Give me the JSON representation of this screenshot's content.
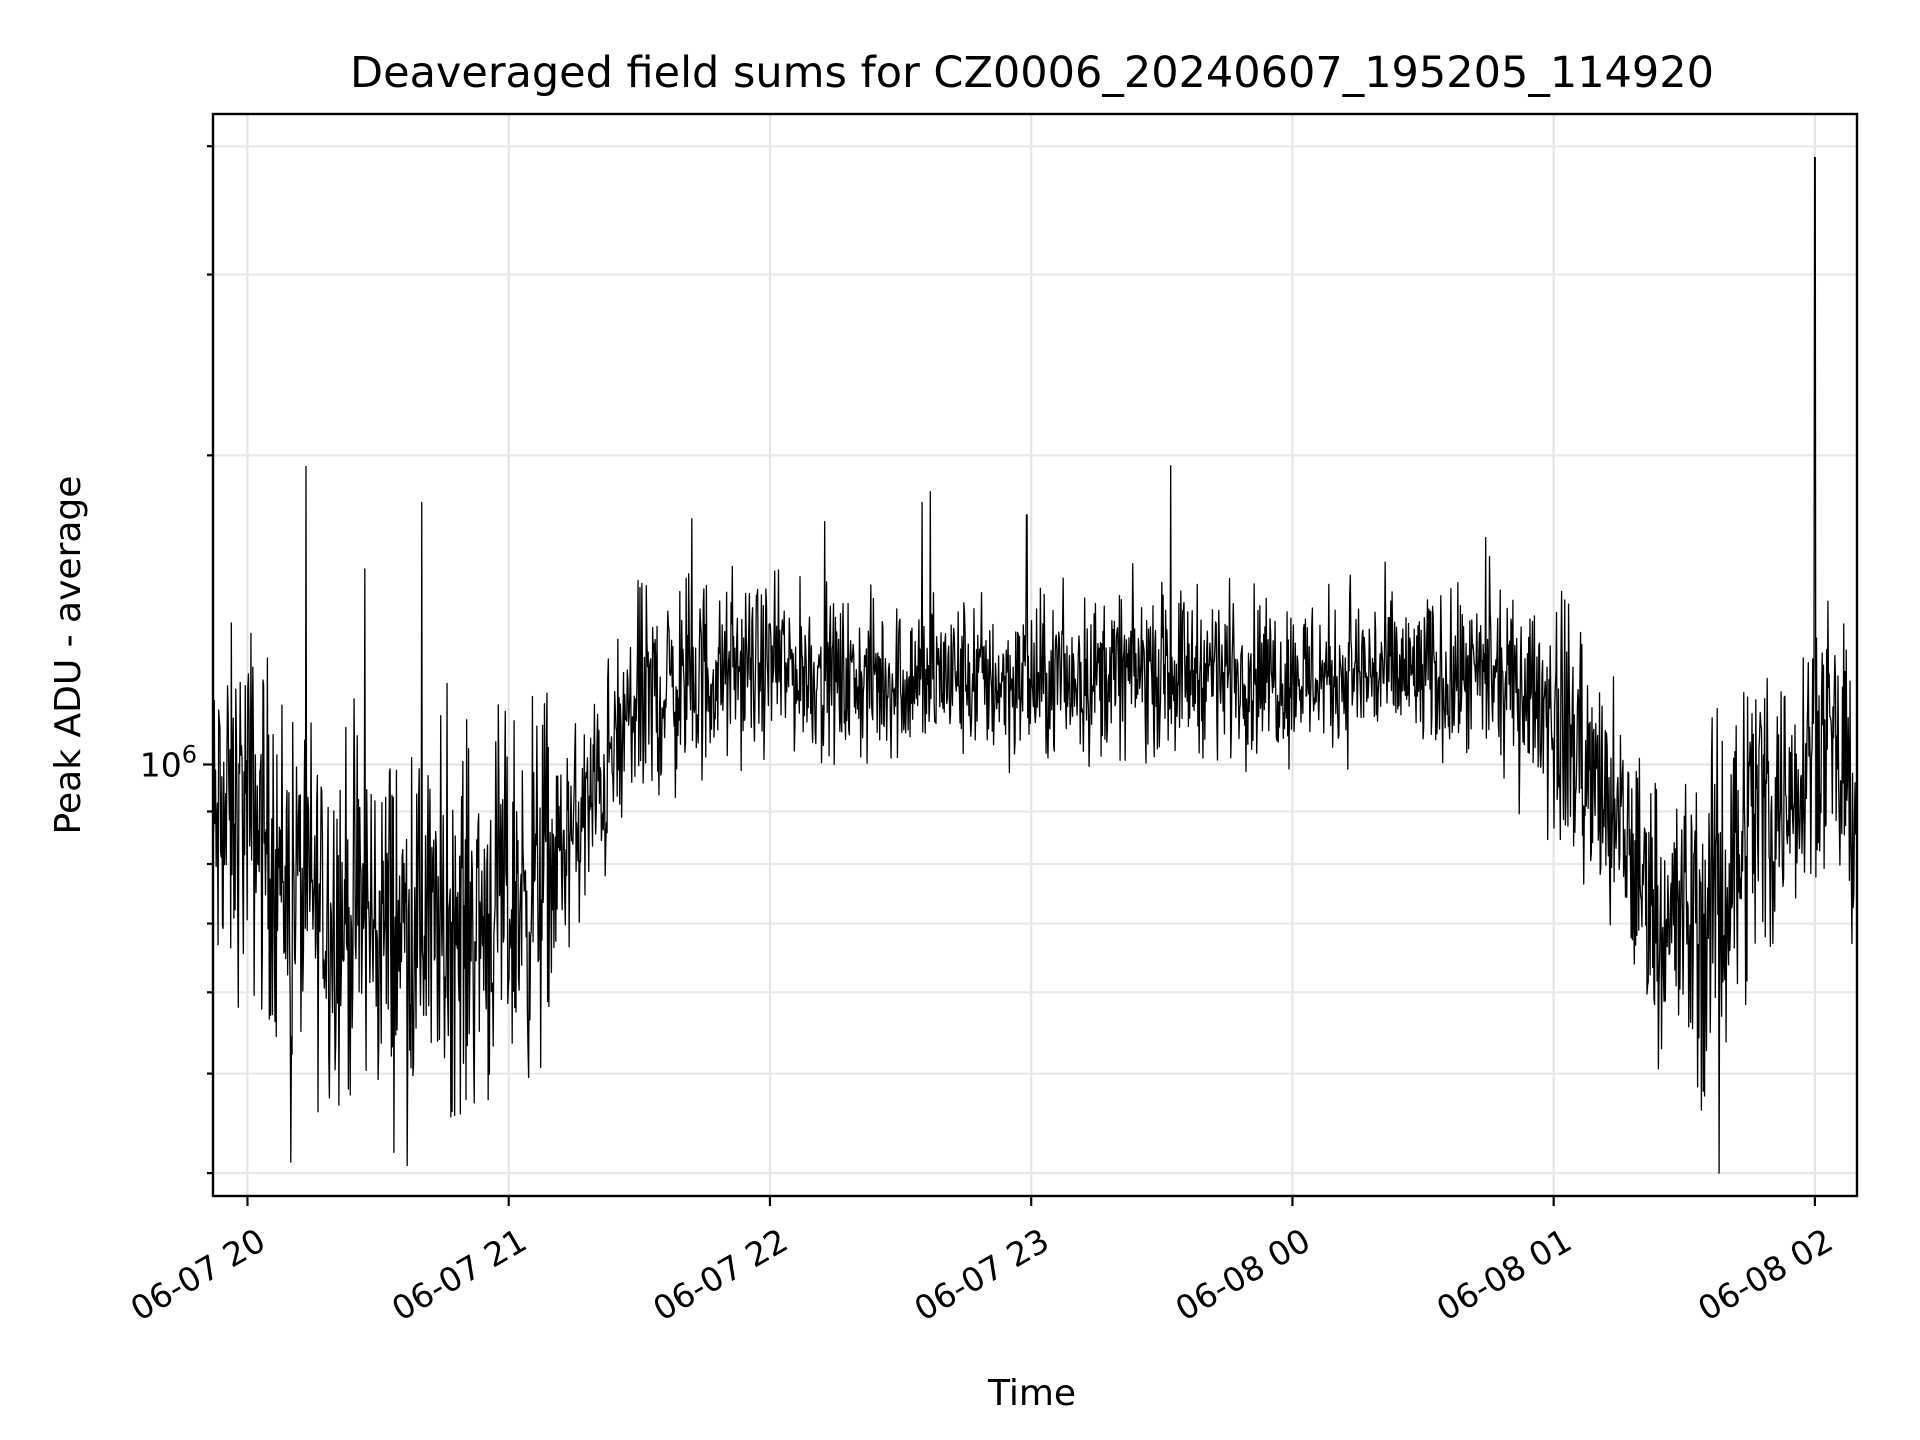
{
  "chart_data": {
    "type": "line",
    "title": "Deaveraged field sums for CZ0006_20240607_195205_114920",
    "xlabel": "Time",
    "ylabel": "Peak ADU - average",
    "y_scale": "log",
    "ylim": [
      380000,
      4300000
    ],
    "xlim": [
      "2024-06-07T19:52:05",
      "2024-06-08T02:09:40"
    ],
    "x_ticks": [
      {
        "value": "2024-06-07T20:00:00",
        "label": "06-07 20"
      },
      {
        "value": "2024-06-07T21:00:00",
        "label": "06-07 21"
      },
      {
        "value": "2024-06-07T22:00:00",
        "label": "06-07 22"
      },
      {
        "value": "2024-06-07T23:00:00",
        "label": "06-07 23"
      },
      {
        "value": "2024-06-08T00:00:00",
        "label": "06-08 00"
      },
      {
        "value": "2024-06-08T01:00:00",
        "label": "06-08 01"
      },
      {
        "value": "2024-06-08T02:00:00",
        "label": "06-08 02"
      }
    ],
    "y_ticks_major": [
      {
        "value": 1000000,
        "base": "10",
        "exp": "6"
      }
    ],
    "y_ticks_minor": [
      400000,
      500000,
      600000,
      700000,
      800000,
      900000,
      2000000,
      3000000,
      4000000
    ],
    "grid": true,
    "line_color": "#000000",
    "series": [
      {
        "x": [
          "2024-06-07T19:52:05",
          "2024-06-07T20:00:00",
          "2024-06-07T20:10:00",
          "2024-06-07T20:20:00",
          "2024-06-07T20:30:00",
          "2024-06-07T20:40:00",
          "2024-06-07T20:50:00",
          "2024-06-07T21:00:00",
          "2024-06-07T21:10:00",
          "2024-06-07T21:20:00",
          "2024-06-07T21:30:00",
          "2024-06-07T21:40:00",
          "2024-06-07T21:50:00",
          "2024-06-07T22:00:00",
          "2024-06-07T22:20:00",
          "2024-06-07T22:40:00",
          "2024-06-07T23:00:00",
          "2024-06-07T23:20:00",
          "2024-06-07T23:40:00",
          "2024-06-08T00:00:00",
          "2024-06-08T00:20:00",
          "2024-06-08T00:40:00",
          "2024-06-08T00:55:00",
          "2024-06-08T01:05:00",
          "2024-06-08T01:15:00",
          "2024-06-08T01:25:00",
          "2024-06-08T01:35:00",
          "2024-06-08T01:45:00",
          "2024-06-08T01:55:00",
          "2024-06-08T02:00:00",
          "2024-06-08T02:09:40"
        ],
        "y": [
          850000,
          920000,
          760000,
          720000,
          700000,
          690000,
          700000,
          730000,
          790000,
          930000,
          1150000,
          1200000,
          1220000,
          1250000,
          1200000,
          1220000,
          1200000,
          1230000,
          1240000,
          1220000,
          1230000,
          1210000,
          1180000,
          1050000,
          850000,
          710000,
          690000,
          900000,
          950000,
          1100000,
          900000
        ]
      }
    ],
    "annotations": [
      {
        "x": "2024-06-07T20:10:00",
        "y": 410000
      },
      {
        "x": "2024-06-07T20:27:00",
        "y": 1550000
      },
      {
        "x": "2024-06-07T20:40:00",
        "y": 1800000
      },
      {
        "x": "2024-06-07T21:28:00",
        "y": 1300000
      },
      {
        "x": "2024-06-07T22:35:00",
        "y": 1800000
      },
      {
        "x": "2024-06-07T22:59:00",
        "y": 1750000
      },
      {
        "x": "2024-06-08T01:38:00",
        "y": 400000
      },
      {
        "x": "2024-06-08T02:00:00",
        "y": 3900000
      }
    ]
  }
}
